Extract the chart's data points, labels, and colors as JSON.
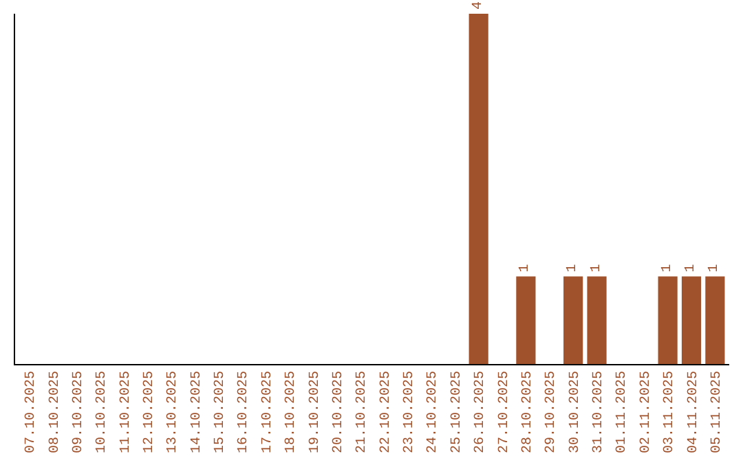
{
  "chart_data": {
    "type": "bar",
    "categories": [
      "07.10.2025",
      "08.10.2025",
      "09.10.2025",
      "10.10.2025",
      "11.10.2025",
      "12.10.2025",
      "13.10.2025",
      "14.10.2025",
      "15.10.2025",
      "16.10.2025",
      "17.10.2025",
      "18.10.2025",
      "19.10.2025",
      "20.10.2025",
      "21.10.2025",
      "22.10.2025",
      "23.10.2025",
      "24.10.2025",
      "25.10.2025",
      "26.10.2025",
      "27.10.2025",
      "28.10.2025",
      "29.10.2025",
      "30.10.2025",
      "31.10.2025",
      "01.11.2025",
      "02.11.2025",
      "03.11.2025",
      "04.11.2025",
      "05.11.2025"
    ],
    "values": [
      null,
      null,
      null,
      null,
      null,
      null,
      null,
      null,
      null,
      null,
      null,
      null,
      null,
      null,
      null,
      null,
      null,
      null,
      null,
      4,
      null,
      1,
      null,
      1,
      1,
      null,
      null,
      1,
      1,
      1
    ],
    "data_labels": true,
    "color": "#a0522d",
    "tick_labels": "x"
  }
}
